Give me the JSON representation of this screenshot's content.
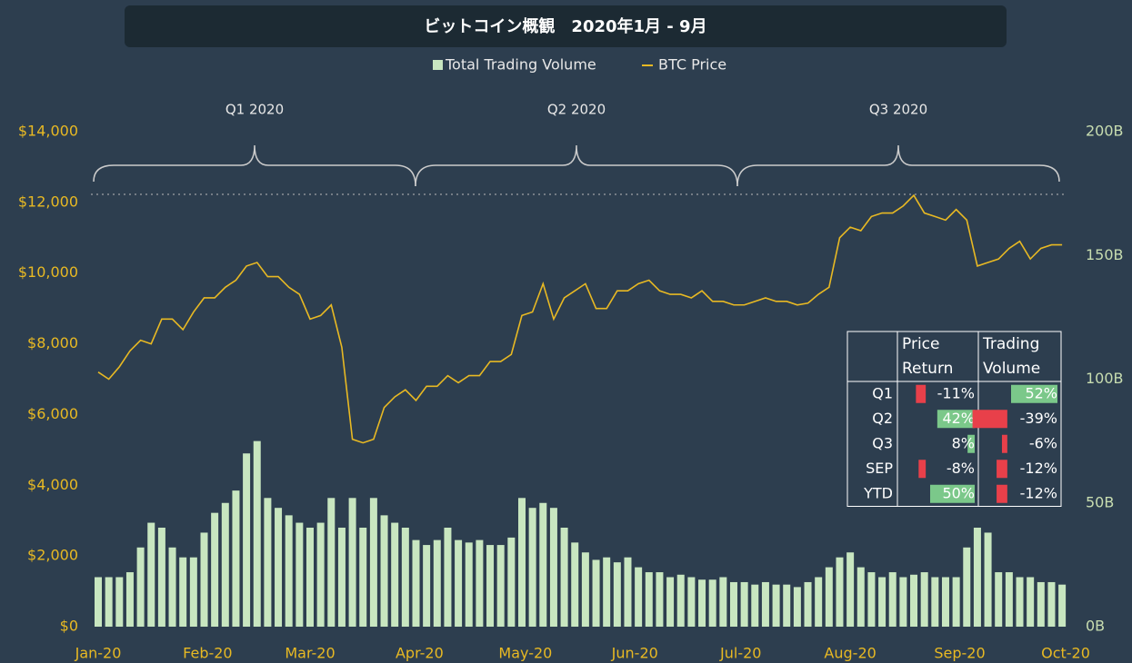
{
  "chart_data": {
    "type": "bar_line",
    "title": "ビットコイン概観　2020年1月 - 9月",
    "annotations": [
      "Q1 2020",
      "Q2 2020",
      "Q3 2020"
    ],
    "xlim": [
      0,
      274
    ],
    "xticks": [
      {
        "value": 0,
        "label": "Jan-20"
      },
      {
        "value": 31,
        "label": "Feb-20"
      },
      {
        "value": 60,
        "label": "Mar-20"
      },
      {
        "value": 91,
        "label": "Apr-20"
      },
      {
        "value": 121,
        "label": "May-20"
      },
      {
        "value": 152,
        "label": "Jun-20"
      },
      {
        "value": 182,
        "label": "Jul-20"
      },
      {
        "value": 213,
        "label": "Aug-20"
      },
      {
        "value": 244,
        "label": "Sep-20"
      },
      {
        "value": 274,
        "label": "Oct-20"
      }
    ],
    "ylim": [
      0,
      14000
    ],
    "yticks": [
      {
        "value": 0,
        "label": "$0"
      },
      {
        "value": 2000,
        "label": "$2,000"
      },
      {
        "value": 4000,
        "label": "$4,000"
      },
      {
        "value": 6000,
        "label": "$6,000"
      },
      {
        "value": 8000,
        "label": "$8,000"
      },
      {
        "value": 10000,
        "label": "$10,000"
      },
      {
        "value": 12000,
        "label": "$12,000"
      },
      {
        "value": 14000,
        "label": "$14,000"
      }
    ],
    "y2lim": [
      0,
      200
    ],
    "y2ticks": [
      {
        "value": 0,
        "label": "0B"
      },
      {
        "value": 50,
        "label": "50B"
      },
      {
        "value": 100,
        "label": "100B"
      },
      {
        "value": 150,
        "label": "150B"
      },
      {
        "value": 200,
        "label": "200B"
      }
    ],
    "x": [
      0,
      3,
      6,
      9,
      12,
      15,
      18,
      21,
      24,
      27,
      30,
      33,
      36,
      39,
      42,
      45,
      48,
      51,
      54,
      57,
      60,
      63,
      66,
      69,
      72,
      75,
      78,
      81,
      84,
      87,
      90,
      93,
      96,
      99,
      102,
      105,
      108,
      111,
      114,
      117,
      120,
      123,
      126,
      129,
      132,
      135,
      138,
      141,
      144,
      147,
      150,
      153,
      156,
      159,
      162,
      165,
      168,
      171,
      174,
      177,
      180,
      183,
      186,
      189,
      192,
      195,
      198,
      201,
      204,
      207,
      210,
      213,
      216,
      219,
      222,
      225,
      228,
      231,
      234,
      237,
      240,
      243,
      246,
      249,
      252,
      255,
      258,
      261,
      264,
      267,
      270,
      273
    ],
    "series": [
      {
        "name": "Total Trading Volume",
        "color": "#c8e6c0",
        "axis": "y2",
        "kind": "bar",
        "values": [
          20,
          20,
          20,
          22,
          32,
          42,
          40,
          32,
          28,
          28,
          38,
          46,
          50,
          55,
          70,
          75,
          52,
          48,
          45,
          42,
          40,
          42,
          52,
          40,
          52,
          40,
          52,
          45,
          42,
          40,
          35,
          33,
          35,
          40,
          35,
          34,
          35,
          33,
          33,
          36,
          52,
          48,
          50,
          48,
          40,
          34,
          30,
          27,
          28,
          26,
          28,
          24,
          22,
          22,
          20,
          21,
          20,
          19,
          19,
          20,
          18,
          18,
          17,
          18,
          17,
          17,
          16,
          18,
          20,
          24,
          28,
          30,
          24,
          22,
          20,
          22,
          20,
          21,
          22,
          20,
          20,
          20,
          32,
          40,
          38,
          22,
          22,
          20,
          20,
          18,
          18,
          17
        ]
      },
      {
        "name": "BTC Price",
        "color": "#e8b923",
        "kind": "line",
        "values": [
          7200,
          7000,
          7350,
          7800,
          8100,
          8000,
          8700,
          8700,
          8400,
          8900,
          9300,
          9300,
          9600,
          9800,
          10200,
          10300,
          9900,
          9900,
          9600,
          9400,
          8700,
          8800,
          9100,
          7900,
          5300,
          5200,
          5300,
          6200,
          6500,
          6700,
          6400,
          6800,
          6800,
          7100,
          6900,
          7100,
          7100,
          7500,
          7500,
          7700,
          8800,
          8900,
          9700,
          8700,
          9300,
          9500,
          9700,
          9000,
          9000,
          9500,
          9500,
          9700,
          9800,
          9500,
          9400,
          9400,
          9300,
          9500,
          9200,
          9200,
          9100,
          9100,
          9200,
          9300,
          9200,
          9200,
          9100,
          9150,
          9400,
          9600,
          11000,
          11300,
          11200,
          11600,
          11700,
          11700,
          11900,
          12200,
          11700,
          11600,
          11500,
          11800,
          11500,
          10200,
          10300,
          10400,
          10700,
          10900,
          10400,
          10700,
          10800,
          10800
        ]
      }
    ]
  },
  "table": {
    "headers": [
      [
        "Price",
        "Return"
      ],
      [
        "Trading",
        "Volume"
      ]
    ],
    "rows": [
      {
        "label": "Q1",
        "price": -11,
        "price_label": "-11%",
        "volume": 52,
        "volume_label": "52%"
      },
      {
        "label": "Q2",
        "price": 42,
        "price_label": "42%",
        "volume": -39,
        "volume_label": "-39%"
      },
      {
        "label": "Q3",
        "price": 8,
        "price_label": "8%",
        "volume": -6,
        "volume_label": "-6%"
      },
      {
        "label": "SEP",
        "price": -8,
        "price_label": "-8%",
        "volume": -12,
        "volume_label": "-12%"
      },
      {
        "label": "YTD",
        "price": 50,
        "price_label": "50%",
        "volume": -12,
        "volume_label": "-12%"
      }
    ]
  }
}
